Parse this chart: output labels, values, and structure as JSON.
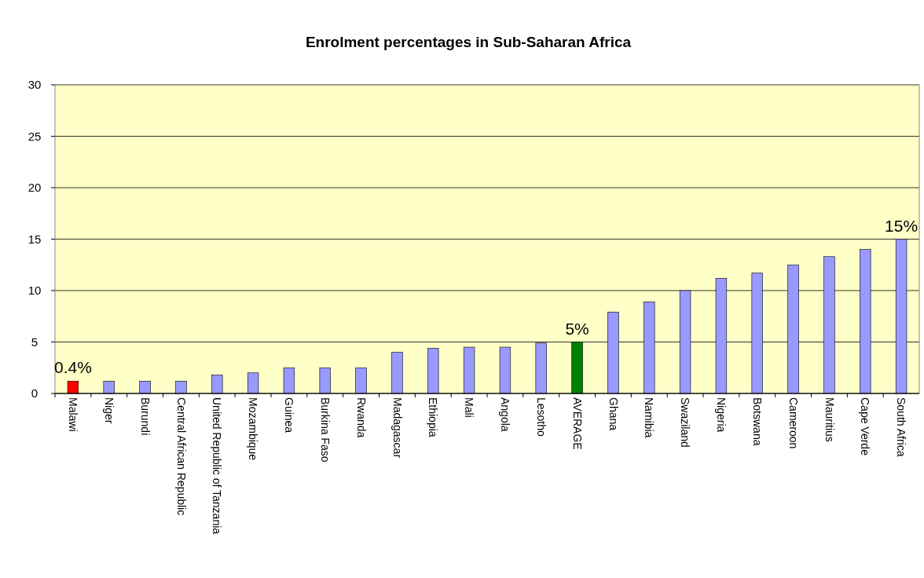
{
  "chart_data": {
    "type": "bar",
    "title": "Enrolment percentages in Sub-Saharan Africa",
    "categories": [
      "Malawi",
      "Niger",
      "Burundi",
      "Central African Republic",
      "United Republic of Tanzania",
      "Mozambique",
      "Guinea",
      "Burkina Faso",
      "Rwanda",
      "Madagascar",
      "Ethiopia",
      "Mali",
      "Angola",
      "Lesotho",
      "AVERAGE",
      "Ghana",
      "Namibia",
      "Swaziland",
      "Nigeria",
      "Botswana",
      "Cameroon",
      "Mauritius",
      "Cape Verde",
      "South Africa"
    ],
    "values": [
      1.2,
      1.2,
      1.2,
      1.2,
      1.8,
      2.0,
      2.5,
      2.5,
      2.5,
      4.0,
      4.4,
      4.5,
      4.5,
      4.9,
      5.0,
      7.9,
      8.9,
      10.0,
      11.2,
      11.7,
      12.5,
      13.3,
      14.0,
      15.0
    ],
    "colors": [
      "#ff0000",
      "#9999ff",
      "#9999ff",
      "#9999ff",
      "#9999ff",
      "#9999ff",
      "#9999ff",
      "#9999ff",
      "#9999ff",
      "#9999ff",
      "#9999ff",
      "#9999ff",
      "#9999ff",
      "#9999ff",
      "#008000",
      "#9999ff",
      "#9999ff",
      "#9999ff",
      "#9999ff",
      "#9999ff",
      "#9999ff",
      "#9999ff",
      "#9999ff",
      "#9999ff"
    ],
    "ylim": [
      0,
      30
    ],
    "yticks": [
      0,
      5,
      10,
      15,
      20,
      25,
      30
    ],
    "grid": "y",
    "annotations": [
      {
        "text": "0.4%",
        "x": "Malawi",
        "y": 1.2
      },
      {
        "text": "5%",
        "x": "AVERAGE",
        "y": 5.0
      },
      {
        "text": "15%",
        "x": "South Africa",
        "y": 15.0
      }
    ]
  }
}
